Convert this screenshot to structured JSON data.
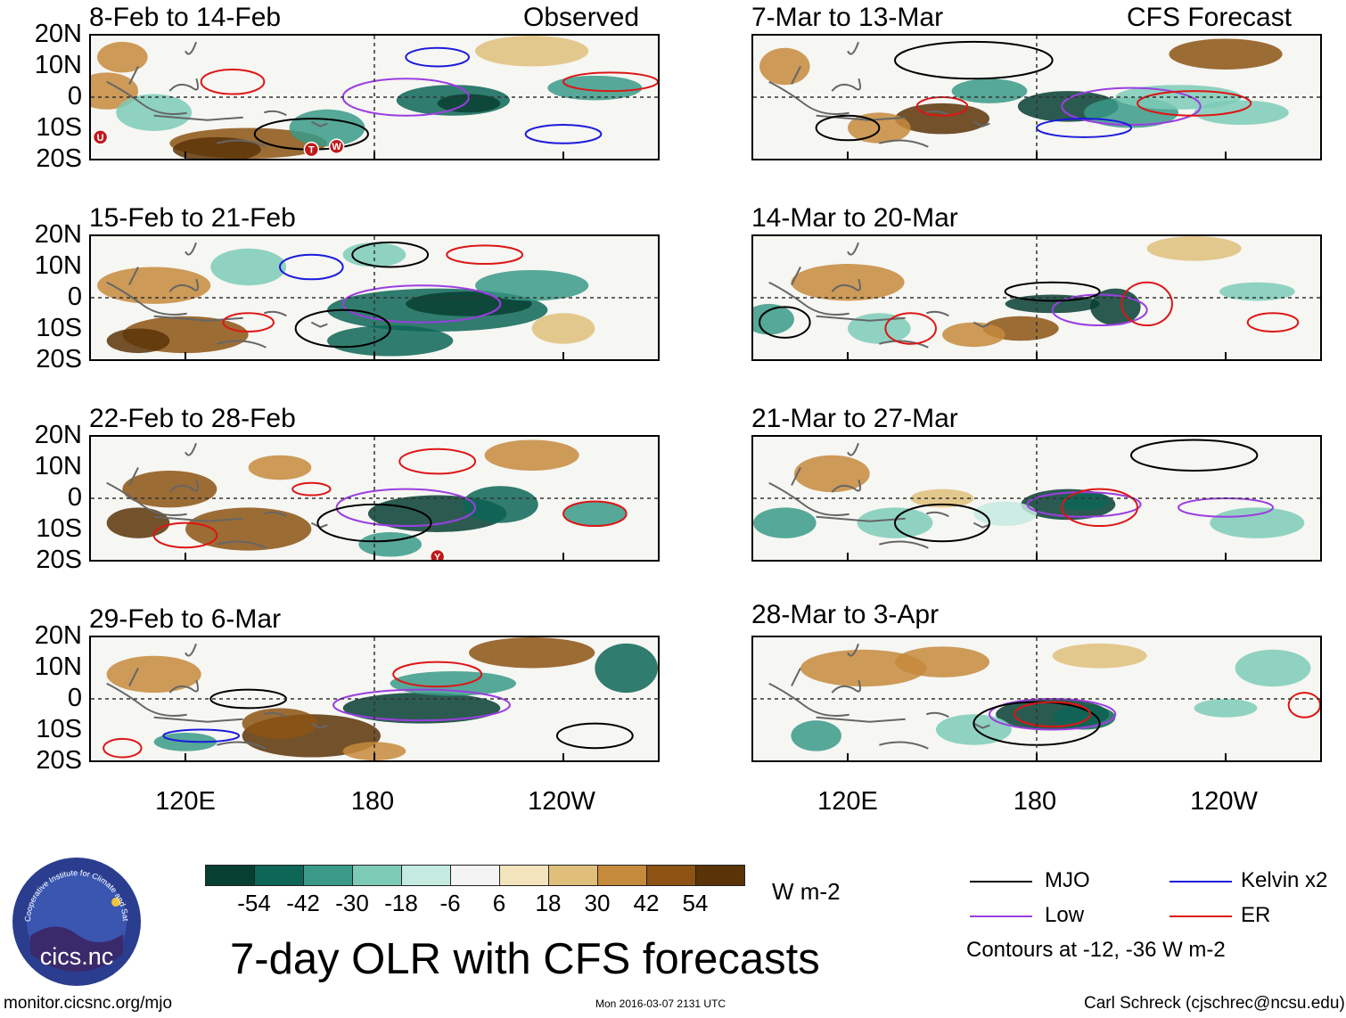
{
  "header": {
    "left_label": "Observed",
    "right_label": "CFS Forecast"
  },
  "axis": {
    "lat_labels": [
      "20N",
      "10N",
      "0",
      "10S",
      "20S"
    ],
    "lon_labels": [
      "120E",
      "180",
      "120W"
    ]
  },
  "panels": [
    {
      "title": "8-Feb to 14-Feb",
      "column": "observed",
      "markers": [
        "U",
        "T",
        "W"
      ]
    },
    {
      "title": "15-Feb to 21-Feb",
      "column": "observed",
      "markers": []
    },
    {
      "title": "22-Feb to 28-Feb",
      "column": "observed",
      "markers": [
        "Y"
      ]
    },
    {
      "title": "29-Feb to 6-Mar",
      "column": "observed",
      "markers": []
    },
    {
      "title": "7-Mar to 13-Mar",
      "column": "forecast",
      "markers": []
    },
    {
      "title": "14-Mar to 20-Mar",
      "column": "forecast",
      "markers": []
    },
    {
      "title": "21-Mar to 27-Mar",
      "column": "forecast",
      "markers": []
    },
    {
      "title": "28-Mar to 3-Apr",
      "column": "forecast",
      "markers": []
    }
  ],
  "colorbar": {
    "colors": [
      "#073f33",
      "#0d6656",
      "#3a9a87",
      "#7ccbb7",
      "#c5ebe1",
      "#f4f4f4",
      "#f3e4bd",
      "#dfbf7a",
      "#c58a3c",
      "#8c5313",
      "#5a3407"
    ],
    "labels": [
      "-54",
      "-42",
      "-30",
      "-18",
      "-6",
      "6",
      "18",
      "30",
      "42",
      "54"
    ],
    "units": "W m-2"
  },
  "legend": {
    "items": [
      {
        "label": "MJO",
        "color": "#000000"
      },
      {
        "label": "Kelvin x2",
        "color": "#1a1adb"
      },
      {
        "label": "Low",
        "color": "#9b3ee0"
      },
      {
        "label": "ER",
        "color": "#dd1515"
      }
    ],
    "note": "Contours at -12, -36 W m-2"
  },
  "footer": {
    "main_title": "7-day OLR with CFS forecasts",
    "logo_text": "cics.nc",
    "logo_ring_text": "Cooperative Institute for Climate and Satellites",
    "url": "monitor.cicsnc.org/mjo",
    "timestamp": "Mon 2016-03-07 2131 UTC",
    "credit": "Carl Schreck (cjschrec@ncsu.edu)"
  },
  "chart_data": {
    "type": "heatmap",
    "title": "7-day OLR with CFS forecasts",
    "variable": "OLR anomaly",
    "units": "W m-2",
    "lat_range": [
      -20,
      20
    ],
    "lon_range": [
      90,
      270
    ],
    "x_ticks": [
      "120E",
      "180",
      "120W"
    ],
    "y_ticks": [
      "20N",
      "10N",
      "0",
      "10S",
      "20S"
    ],
    "color_levels": [
      -54,
      -42,
      -30,
      -18,
      -6,
      6,
      18,
      30,
      42,
      54
    ],
    "contours": {
      "filters": [
        "MJO",
        "Low",
        "Kelvin x2",
        "ER"
      ],
      "levels": [
        -12,
        -36
      ]
    },
    "periods": [
      "8-Feb to 14-Feb",
      "15-Feb to 21-Feb",
      "22-Feb to 28-Feb",
      "29-Feb to 6-Mar",
      "7-Mar to 13-Mar",
      "14-Mar to 20-Mar",
      "21-Mar to 27-Mar",
      "28-Mar to 3-Apr"
    ]
  }
}
